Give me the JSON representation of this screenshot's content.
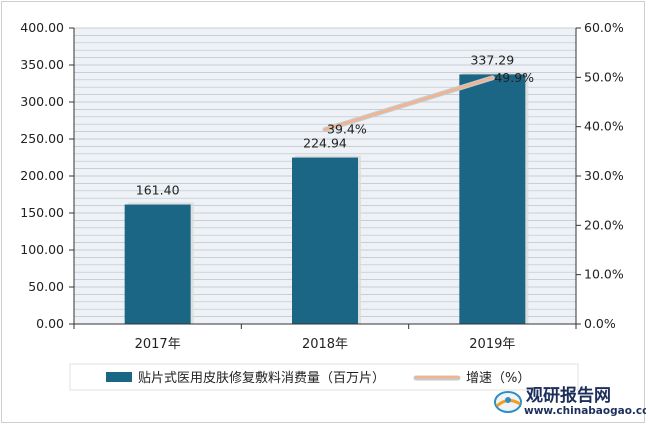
{
  "chart_data": {
    "type": "bar",
    "categories": [
      "2017年",
      "2018年",
      "2019年"
    ],
    "series": [
      {
        "name": "贴片式医用皮肤修复敷料消费量（百万片）",
        "type": "bar",
        "axis": "left",
        "values": [
          161.4,
          224.94,
          337.29
        ],
        "labels": [
          "161.40",
          "224.94",
          "337.29"
        ],
        "color": "#1b6585"
      },
      {
        "name": "增速（%）",
        "type": "line",
        "axis": "right",
        "values": [
          null,
          39.4,
          49.9
        ],
        "labels": [
          null,
          "39.4%",
          "49.9%"
        ],
        "color": "#f2b48e"
      }
    ],
    "y_left": {
      "min": 0,
      "max": 400,
      "step": 50,
      "ticks": [
        "0.00",
        "50.00",
        "100.00",
        "150.00",
        "200.00",
        "250.00",
        "300.00",
        "350.00",
        "400.00"
      ]
    },
    "y_right": {
      "min": 0,
      "max": 60,
      "step": 10,
      "ticks": [
        "0.0%",
        "10.0%",
        "20.0%",
        "30.0%",
        "40.0%",
        "50.0%",
        "60.0%"
      ]
    },
    "grid": true,
    "legend_position": "bottom"
  },
  "watermark": {
    "name_cn": "观研报告网",
    "site": "www.chinabaogao.com"
  }
}
